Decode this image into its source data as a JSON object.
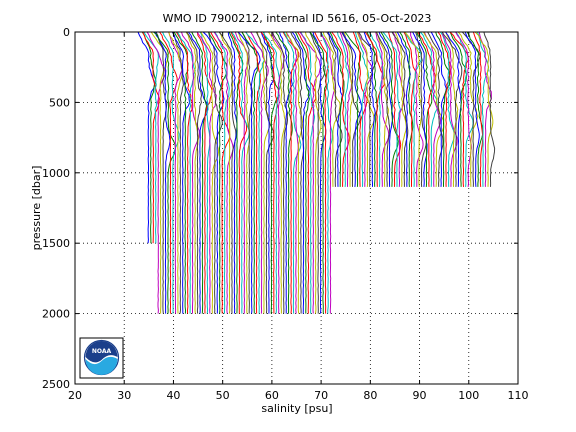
{
  "chart_data": {
    "type": "line",
    "title": "WMO ID 7900212, internal ID 5616, 05-Oct-2023",
    "xlabel": "salinity [psu]",
    "ylabel": "pressure [dbar]",
    "xlim": [
      20,
      110
    ],
    "ylim": [
      0,
      2500
    ],
    "y_reversed": true,
    "xticks": [
      20,
      30,
      40,
      50,
      60,
      70,
      80,
      90,
      100,
      110
    ],
    "yticks": [
      0,
      500,
      1000,
      1500,
      2000,
      2500
    ],
    "grid": "dotted",
    "offset_step_psu": 0.5,
    "profile_count": 140,
    "first_profile_base_salinity": 34.9,
    "series_colors": [
      "#0000ff",
      "#008000",
      "#ff0000",
      "#00bfbf",
      "#bf00bf",
      "#bfbf00",
      "#404040"
    ],
    "profile_max_pressure": {
      "first_profiles": 1500,
      "mid_profiles": 2000,
      "late_profiles": 1100
    },
    "logo": {
      "text": "NOAA",
      "position": "bottom-left"
    }
  }
}
